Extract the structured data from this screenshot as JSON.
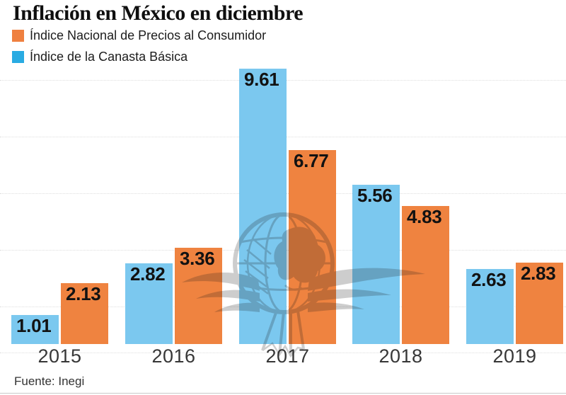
{
  "chart_data": {
    "type": "bar",
    "title": "Inflación en México en diciembre",
    "categories": [
      "2015",
      "2016",
      "2017",
      "2018",
      "2019"
    ],
    "series": [
      {
        "key": "inpc",
        "name": "Índice Nacional de Precios al Consumidor",
        "color": "#EF8340",
        "legend_swatch_color": "#EF8040",
        "values": [
          2.13,
          3.36,
          6.77,
          4.83,
          2.83
        ]
      },
      {
        "key": "canasta",
        "name": "Índice de la Canasta Básica",
        "color": "#7BC8EF",
        "legend_swatch_color": "#29ABE2",
        "values": [
          1.01,
          2.82,
          9.61,
          5.56,
          2.63
        ]
      }
    ],
    "ylim": [
      0,
      9.8
    ],
    "grid": "horizontal-dotted",
    "legend_position": "top-left",
    "value_labels": "inside-top",
    "source": "Fuente: Inegi",
    "watermark": "winged-globe"
  }
}
